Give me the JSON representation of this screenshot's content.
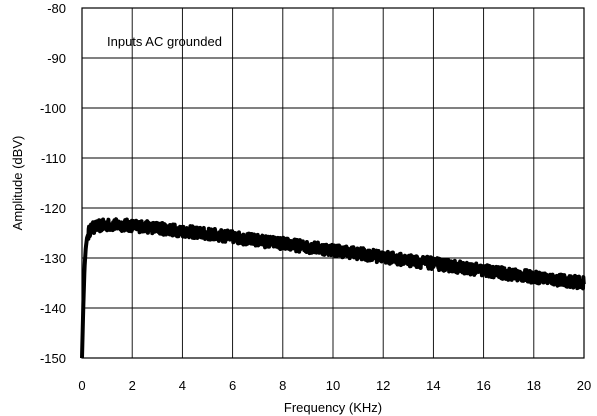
{
  "chart_data": {
    "type": "line",
    "title": "",
    "xlabel": "Frequency (KHz)",
    "ylabel": "Amplitude (dBV)",
    "xlim": [
      0,
      20
    ],
    "ylim": [
      -150,
      -80
    ],
    "x_ticks": [
      "0",
      "2",
      "4",
      "6",
      "8",
      "10",
      "12",
      "14",
      "16",
      "18",
      "20"
    ],
    "y_ticks": [
      "-80",
      "-90",
      "-100",
      "-110",
      "-120",
      "-130",
      "-140",
      "-150"
    ],
    "grid": true,
    "legend": "none",
    "annotation": "Inputs AC grounded",
    "series": [
      {
        "color": "#000000",
        "noise_band_db": 1.2,
        "x": [
          0.0,
          0.05,
          0.1,
          0.15,
          0.2,
          0.3,
          0.5,
          0.8,
          1.0,
          1.5,
          2.0,
          3.0,
          4.0,
          5.0,
          6.0,
          7.0,
          8.0,
          9.0,
          10.0,
          11.0,
          12.0,
          13.0,
          14.0,
          15.0,
          16.0,
          17.0,
          18.0,
          19.0,
          20.0
        ],
        "y": [
          -150,
          -140,
          -132,
          -128,
          -126,
          -124.5,
          -123.8,
          -123.5,
          -123.4,
          -123.4,
          -123.5,
          -124.0,
          -124.6,
          -125.2,
          -125.8,
          -126.5,
          -127.1,
          -127.8,
          -128.4,
          -129.1,
          -129.8,
          -130.5,
          -131.1,
          -131.8,
          -132.5,
          -133.2,
          -133.8,
          -134.4,
          -135.0
        ]
      }
    ]
  }
}
